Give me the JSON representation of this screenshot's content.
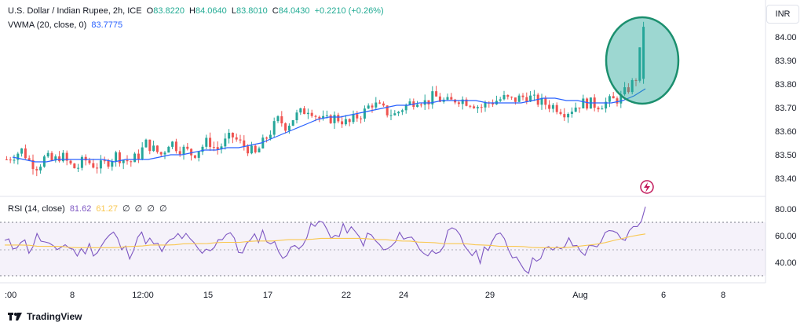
{
  "header": {
    "symbol": "U.S. Dollar / Indian Rupee, 2h, ICE",
    "o_label": "O",
    "o_value": "83.8220",
    "h_label": "H",
    "h_value": "84.0640",
    "l_label": "L",
    "l_value": "83.8010",
    "c_label": "C",
    "c_value": "84.0430",
    "change": "+0.2210 (+0.26%)",
    "vwma_label": "VWMA (20, close, 0)",
    "vwma_value": "83.7775",
    "currency_button": "INR"
  },
  "rsi_legend": {
    "label": "RSI (14, close)",
    "value1": "81.62",
    "value2": "61.27",
    "na_values": [
      "∅",
      "∅",
      "∅",
      "∅"
    ]
  },
  "branding": {
    "name": "TradingView"
  },
  "colors": {
    "up": "#26a69a",
    "down": "#ef5350",
    "vwma": "#2962ff",
    "rsi": "#7e57c2",
    "rsi_ma": "#f9c74f",
    "highlight": "#26a69a"
  },
  "chart_data": [
    {
      "type": "candlestick",
      "title": "U.S. Dollar / Indian Rupee, 2h, ICE",
      "x_ticks": [
        ":00",
        "8",
        "12:00",
        "15",
        "17",
        "22",
        "24",
        "29",
        "Aug",
        "6",
        "8"
      ],
      "y_ticks": [
        "84.00",
        "83.90",
        "83.80",
        "83.70",
        "83.60",
        "83.50",
        "83.40"
      ],
      "ylim": [
        83.36,
        84.08
      ],
      "overlay": "VWMA (20, close, 0)",
      "close_path": [
        83.48,
        83.5,
        83.52,
        83.47,
        83.45,
        83.49,
        83.47,
        83.5,
        83.46,
        83.44,
        83.48,
        83.46,
        83.45,
        83.47,
        83.5,
        83.48,
        83.47,
        83.5,
        83.55,
        83.52,
        83.5,
        83.56,
        83.53,
        83.52,
        83.5,
        83.53,
        83.56,
        83.52,
        83.55,
        83.58,
        83.55,
        83.53,
        83.5,
        83.55,
        83.6,
        83.65,
        83.62,
        83.66,
        83.68,
        83.7,
        83.66,
        83.64,
        83.66,
        83.65,
        83.63,
        83.66,
        83.68,
        83.72,
        83.7,
        83.68,
        83.67,
        83.7,
        83.72,
        83.74,
        83.72,
        83.75,
        83.73,
        83.72,
        83.74,
        83.73,
        83.72,
        83.7,
        83.72,
        83.73,
        83.74,
        83.73,
        83.74,
        83.75,
        83.73,
        83.72,
        83.71,
        83.7,
        83.68,
        83.7,
        83.72,
        83.72,
        83.71,
        83.72,
        83.73,
        83.74,
        83.78,
        83.82,
        84.04
      ],
      "vwma_path": [
        83.49,
        83.48,
        83.47,
        83.47,
        83.48,
        83.48,
        83.48,
        83.48,
        83.48,
        83.47,
        83.48,
        83.48,
        83.48,
        83.49,
        83.5,
        83.5,
        83.51,
        83.52,
        83.52,
        83.53,
        83.53,
        83.54,
        83.55,
        83.57,
        83.59,
        83.61,
        83.63,
        83.65,
        83.66,
        83.66,
        83.67,
        83.68,
        83.69,
        83.7,
        83.71,
        83.71,
        83.72,
        83.72,
        83.73,
        83.73,
        83.73,
        83.73,
        83.72,
        83.72,
        83.72,
        83.72,
        83.73,
        83.74,
        83.74,
        83.73,
        83.73,
        83.72,
        83.72,
        83.72,
        83.73,
        83.75,
        83.78
      ],
      "annotation": "highlighted final breakout candle near 84.04"
    },
    {
      "type": "line",
      "title": "RSI (14, close)",
      "y_ticks": [
        "80.00",
        "60.00",
        "40.00"
      ],
      "ylim": [
        30,
        85
      ],
      "bands": [
        70,
        50,
        30
      ],
      "series": [
        {
          "name": "RSI (14, close)",
          "values": [
            55,
            52,
            58,
            49,
            60,
            53,
            47,
            55,
            50,
            46,
            52,
            48,
            56,
            62,
            51,
            47,
            60,
            58,
            52,
            49,
            55,
            61,
            57,
            50,
            46,
            53,
            59,
            64,
            48,
            52,
            57,
            62,
            55,
            49,
            45,
            53,
            58,
            66,
            70,
            63,
            58,
            67,
            61,
            56,
            60,
            52,
            48,
            55,
            62,
            57,
            51,
            45,
            50,
            58,
            63,
            55,
            48,
            42,
            53,
            60,
            56,
            47,
            41,
            35,
            45,
            50,
            47,
            52,
            55,
            50,
            48,
            54,
            58,
            62,
            57,
            61,
            68,
            81.62
          ]
        },
        {
          "name": "MA",
          "values": [
            53,
            53,
            53,
            52,
            52,
            52,
            51,
            51,
            51,
            51,
            51,
            52,
            52,
            53,
            53,
            53,
            54,
            54,
            54,
            55,
            55,
            55,
            56,
            56,
            56,
            57,
            57,
            57,
            58,
            58,
            58,
            58,
            58,
            57,
            57,
            56,
            56,
            55,
            55,
            54,
            54,
            54,
            53,
            53,
            52,
            52,
            52,
            51,
            51,
            51,
            51,
            52,
            53,
            54,
            56,
            58,
            60,
            61.27
          ]
        }
      ]
    }
  ]
}
